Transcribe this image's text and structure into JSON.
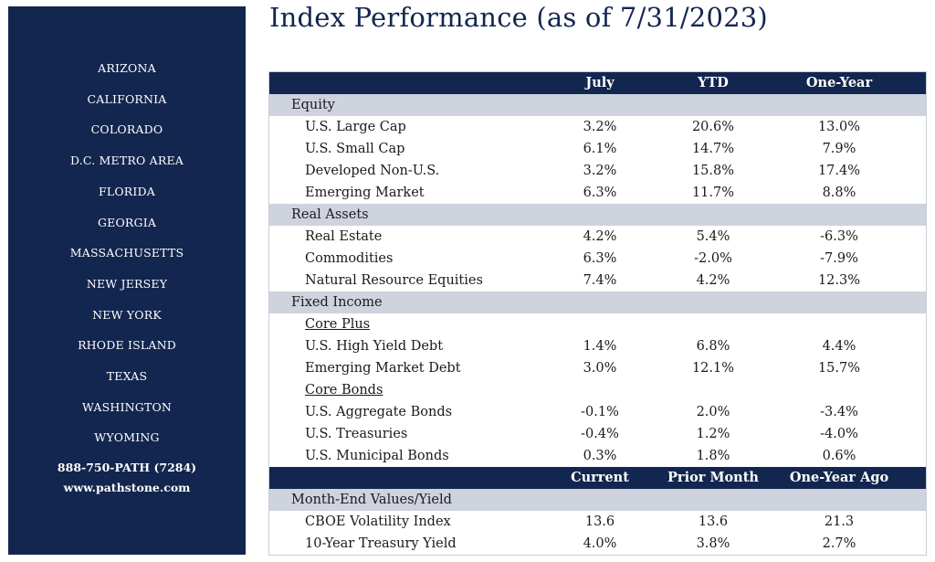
{
  "title": "Index Performance (as of 7/31/2023)",
  "sidebar": {
    "locations": [
      "ARIZONA",
      "CALIFORNIA",
      "COLORADO",
      "D.C. METRO AREA",
      "FLORIDA",
      "GEORGIA",
      "MASSACHUSETTS",
      "NEW JERSEY",
      "NEW YORK",
      "RHODE ISLAND",
      "TEXAS",
      "WASHINGTON",
      "WYOMING"
    ],
    "phone": "888-750-PATH (7284)",
    "website": "www.pathstone.com"
  },
  "performance_table": {
    "columns": [
      "July",
      "YTD",
      "One-Year"
    ],
    "rows": [
      {
        "kind": "section",
        "label": "Equity"
      },
      {
        "kind": "item",
        "label": "U.S. Large Cap",
        "values": [
          "3.2%",
          "20.6%",
          "13.0%"
        ]
      },
      {
        "kind": "item",
        "label": "U.S. Small Cap",
        "values": [
          "6.1%",
          "14.7%",
          "7.9%"
        ]
      },
      {
        "kind": "item",
        "label": "Developed Non-U.S.",
        "values": [
          "3.2%",
          "15.8%",
          "17.4%"
        ]
      },
      {
        "kind": "item",
        "label": "Emerging Market",
        "values": [
          "6.3%",
          "11.7%",
          "8.8%"
        ]
      },
      {
        "kind": "section",
        "label": "Real Assets"
      },
      {
        "kind": "item",
        "label": "Real Estate",
        "values": [
          "4.2%",
          "5.4%",
          "-6.3%"
        ]
      },
      {
        "kind": "item",
        "label": "Commodities",
        "values": [
          "6.3%",
          "-2.0%",
          "-7.9%"
        ]
      },
      {
        "kind": "item",
        "label": "Natural Resource Equities",
        "values": [
          "7.4%",
          "4.2%",
          "12.3%"
        ]
      },
      {
        "kind": "section",
        "label": "Fixed Income"
      },
      {
        "kind": "subsection",
        "label": "Core Plus"
      },
      {
        "kind": "item",
        "label": "U.S. High Yield Debt",
        "values": [
          "1.4%",
          "6.8%",
          "4.4%"
        ]
      },
      {
        "kind": "item",
        "label": "Emerging Market Debt",
        "values": [
          "3.0%",
          "12.1%",
          "15.7%"
        ]
      },
      {
        "kind": "subsection",
        "label": "Core Bonds"
      },
      {
        "kind": "item",
        "label": "U.S. Aggregate Bonds",
        "values": [
          "-0.1%",
          "2.0%",
          "-3.4%"
        ]
      },
      {
        "kind": "item",
        "label": "U.S. Treasuries",
        "values": [
          "-0.4%",
          "1.2%",
          "-4.0%"
        ]
      },
      {
        "kind": "item",
        "label": "U.S. Municipal Bonds",
        "values": [
          "0.3%",
          "1.8%",
          "0.6%"
        ]
      }
    ]
  },
  "values_table": {
    "columns": [
      "Current",
      "Prior Month",
      "One-Year Ago"
    ],
    "rows": [
      {
        "kind": "section",
        "label": "Month-End Values/Yield"
      },
      {
        "kind": "item",
        "label": "CBOE Volatility Index",
        "values": [
          "13.6",
          "13.6",
          "21.3"
        ]
      },
      {
        "kind": "item",
        "label": "10-Year Treasury Yield",
        "values": [
          "4.0%",
          "3.8%",
          "2.7%"
        ]
      }
    ]
  }
}
